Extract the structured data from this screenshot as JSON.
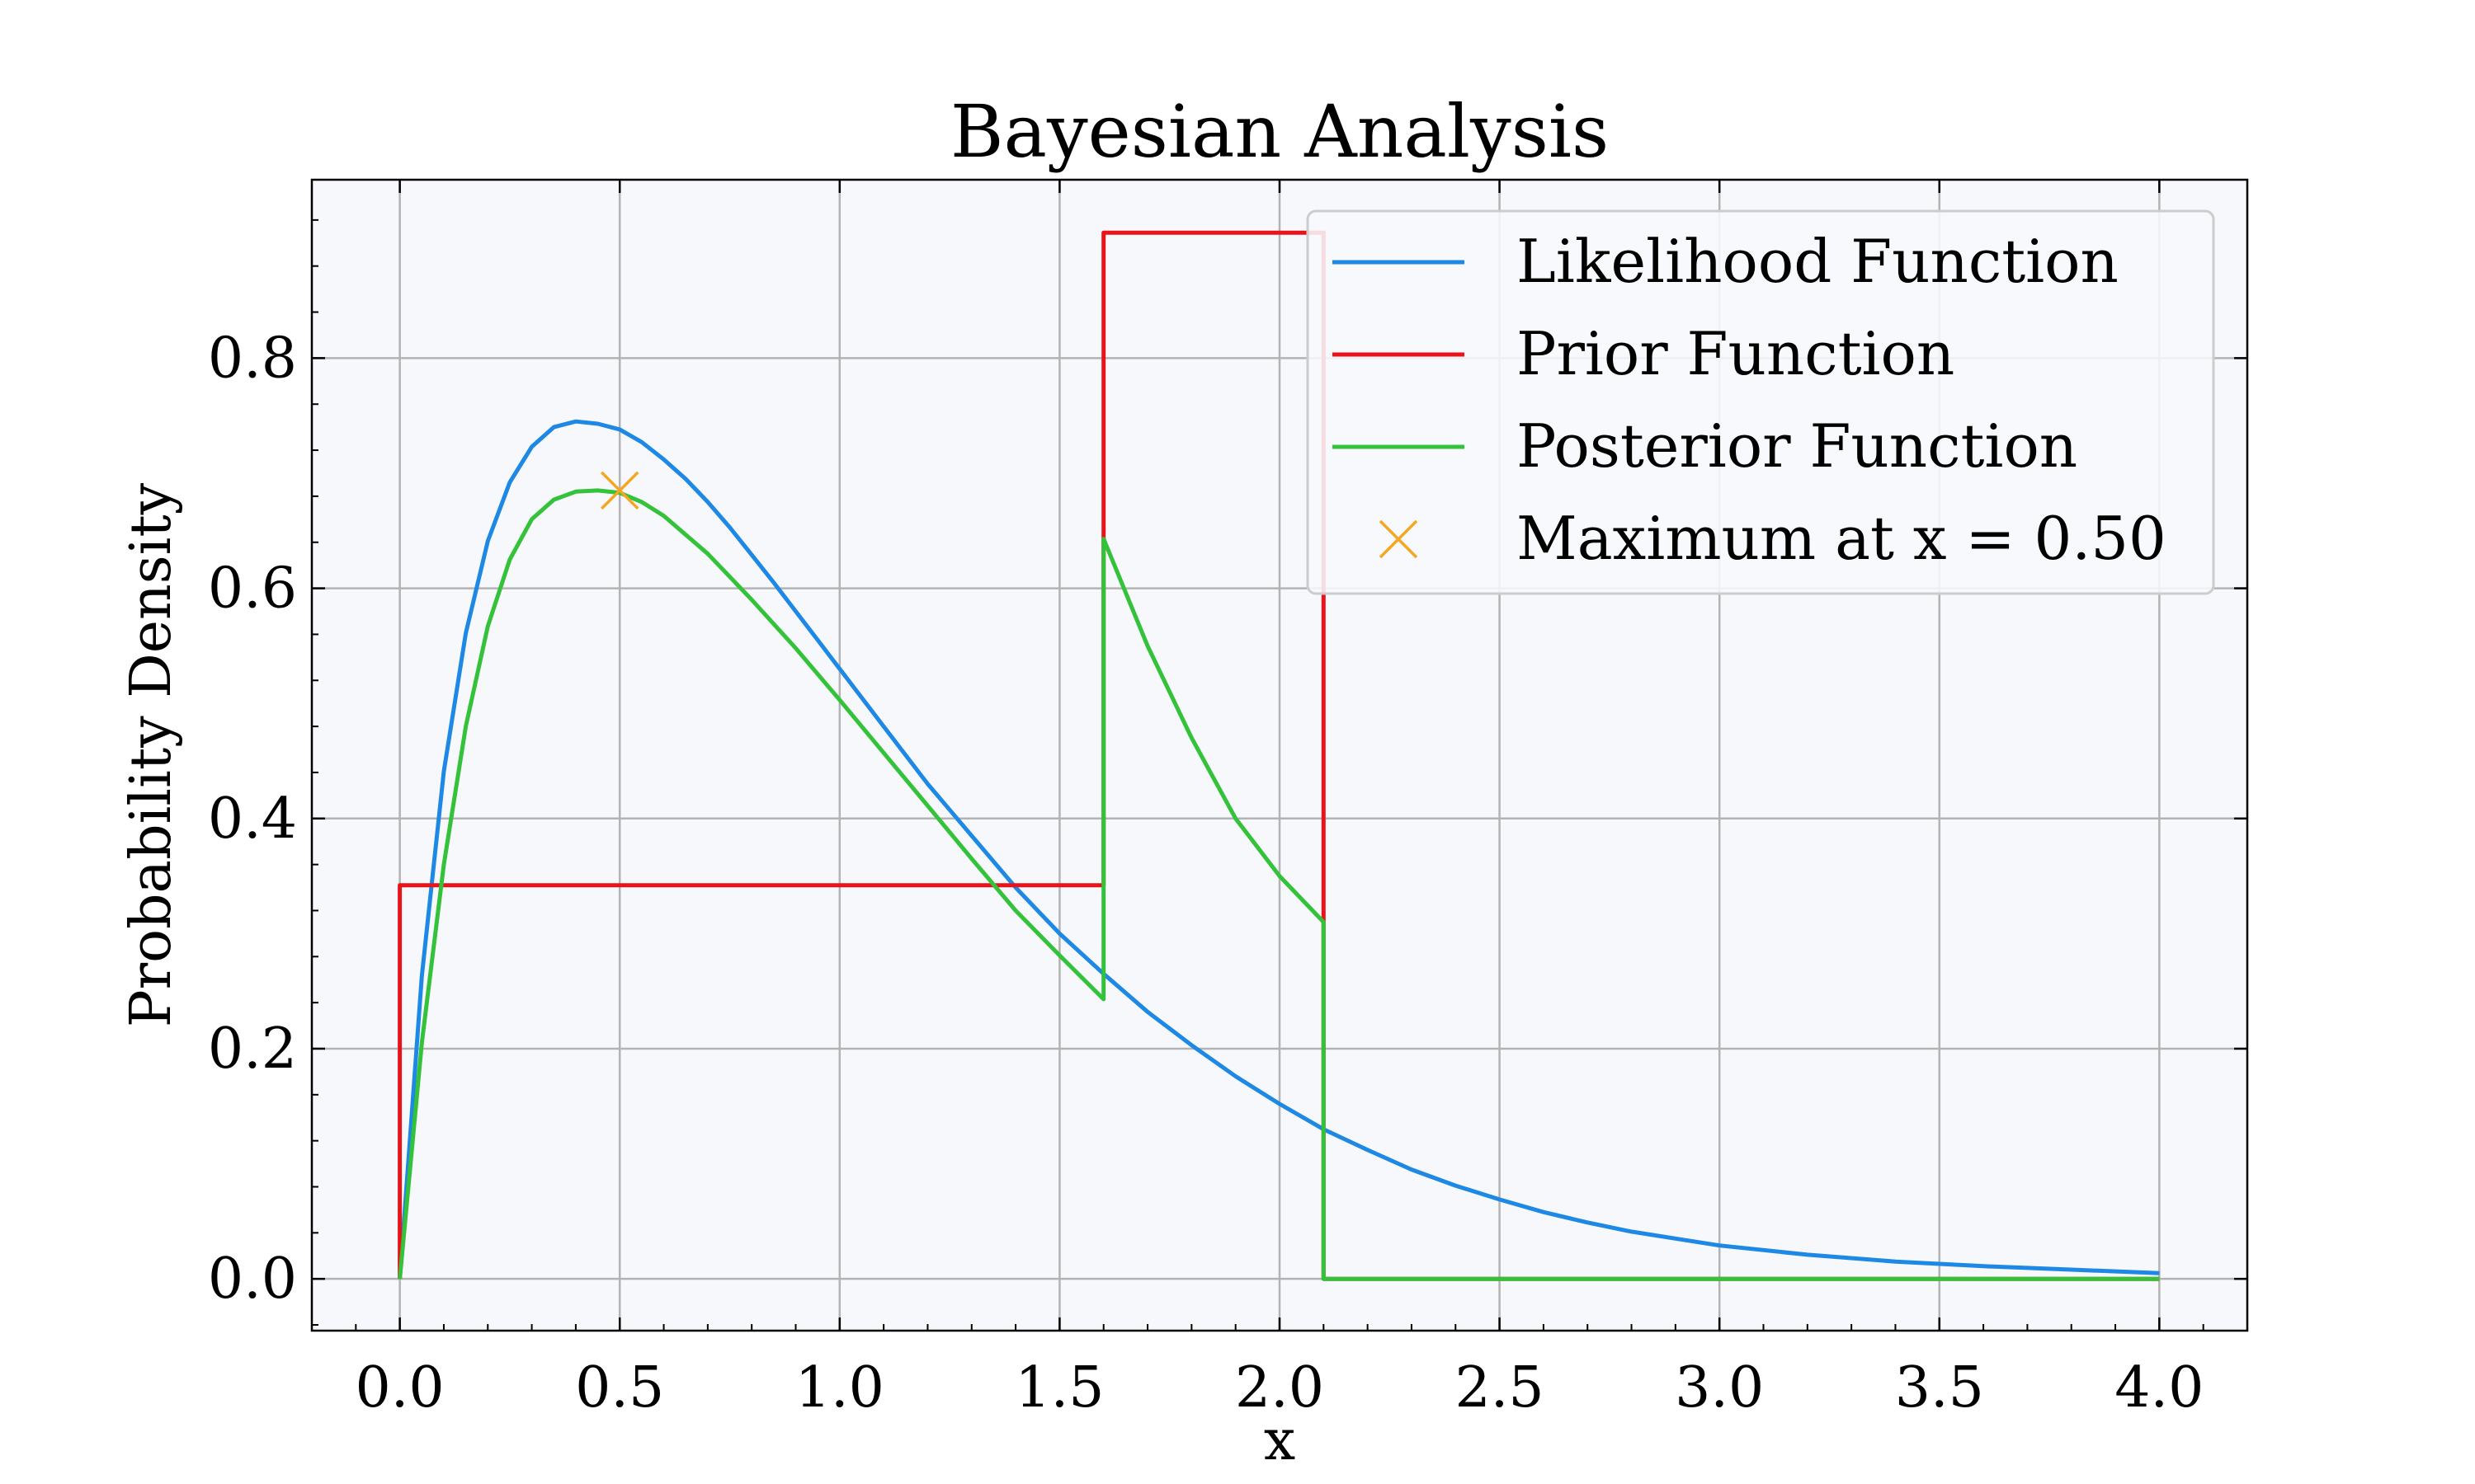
{
  "chart_data": {
    "type": "line",
    "title": "Bayesian Analysis",
    "xlabel": "x",
    "ylabel": "Probability Density",
    "xlim": [
      -0.2,
      4.2
    ],
    "ylim": [
      -0.045,
      0.955
    ],
    "xticks": [
      "0.0",
      "0.5",
      "1.0",
      "1.5",
      "2.0",
      "2.5",
      "3.0",
      "3.5",
      "4.0"
    ],
    "yticks": [
      "0.0",
      "0.2",
      "0.4",
      "0.6",
      "0.8"
    ],
    "grid": true,
    "legend_position": "top-right",
    "series": [
      {
        "name": "Likelihood Function",
        "color": "#1e88e5",
        "x": [
          0,
          0.05,
          0.1,
          0.15,
          0.2,
          0.25,
          0.3,
          0.35,
          0.4,
          0.45,
          0.5,
          0.55,
          0.6,
          0.65,
          0.7,
          0.75,
          0.8,
          0.85,
          0.9,
          0.95,
          1.0,
          1.1,
          1.2,
          1.3,
          1.4,
          1.5,
          1.6,
          1.7,
          1.8,
          1.9,
          2.0,
          2.1,
          2.2,
          2.3,
          2.4,
          2.5,
          2.6,
          2.7,
          2.8,
          2.9,
          3.0,
          3.2,
          3.4,
          3.6,
          3.8,
          4.0
        ],
        "y": [
          0,
          0.263,
          0.441,
          0.561,
          0.641,
          0.692,
          0.723,
          0.74,
          0.745,
          0.743,
          0.738,
          0.727,
          0.712,
          0.695,
          0.675,
          0.653,
          0.629,
          0.605,
          0.58,
          0.555,
          0.53,
          0.48,
          0.43,
          0.385,
          0.34,
          0.3,
          0.265,
          0.232,
          0.203,
          0.176,
          0.152,
          0.13,
          0.112,
          0.095,
          0.081,
          0.069,
          0.058,
          0.049,
          0.041,
          0.035,
          0.029,
          0.021,
          0.015,
          0.011,
          0.008,
          0.005
        ]
      },
      {
        "name": "Prior Function",
        "color": "#e8141c",
        "x": [
          0,
          0,
          1.6,
          1.6,
          2.1,
          2.1,
          4.0
        ],
        "y": [
          0,
          0.342,
          0.342,
          0.909,
          0.909,
          0,
          0
        ]
      },
      {
        "name": "Posterior Function",
        "color": "#33c23a",
        "x": [
          0,
          0.05,
          0.1,
          0.15,
          0.2,
          0.25,
          0.3,
          0.35,
          0.4,
          0.45,
          0.5,
          0.55,
          0.6,
          0.7,
          0.8,
          0.9,
          1.0,
          1.1,
          1.2,
          1.3,
          1.4,
          1.5,
          1.6,
          1.6,
          1.7,
          1.8,
          1.9,
          2.0,
          2.1,
          2.1,
          4.0
        ],
        "y": [
          0,
          0.205,
          0.36,
          0.48,
          0.567,
          0.625,
          0.66,
          0.677,
          0.684,
          0.685,
          0.683,
          0.675,
          0.663,
          0.63,
          0.59,
          0.548,
          0.503,
          0.457,
          0.411,
          0.365,
          0.32,
          0.281,
          0.243,
          0.643,
          0.55,
          0.47,
          0.4,
          0.35,
          0.31,
          0,
          0
        ]
      }
    ],
    "marker": {
      "name": "Maximum at x = 0.50",
      "color": "#f5a623",
      "symbol": "x",
      "x": 0.5,
      "y": 0.685
    }
  }
}
